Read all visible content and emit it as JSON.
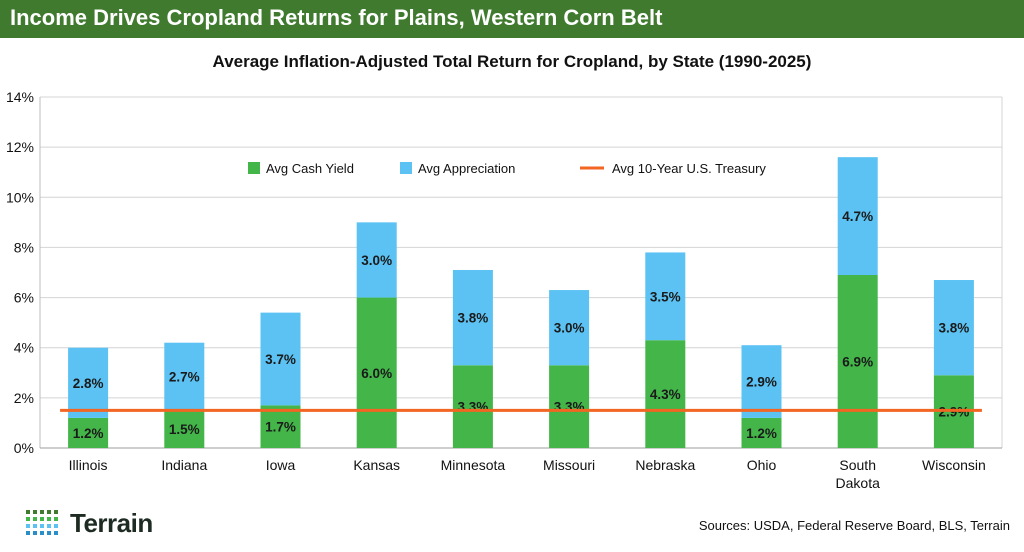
{
  "header": {
    "title": "Income Drives Cropland Returns for Plains, Western Corn Belt"
  },
  "footer": {
    "logo_text": "Terrain",
    "sources": "Sources: USDA, Federal Reserve Board, BLS, Terrain"
  },
  "colors": {
    "banner": "#3f7a2e",
    "cash_yield": "#43b549",
    "appreciation": "#5bc2f3",
    "treasury": "#f26522"
  },
  "chart_data": {
    "type": "bar",
    "stacked": true,
    "title": "Average Inflation-Adjusted Total Return for Cropland, by State (1990-2025)",
    "categories": [
      "Illinois",
      "Indiana",
      "Iowa",
      "Kansas",
      "Minnesota",
      "Missouri",
      "Nebraska",
      "Ohio",
      "South Dakota",
      "Wisconsin"
    ],
    "series": [
      {
        "name": "Avg Cash Yield",
        "values": [
          1.2,
          1.5,
          1.7,
          6.0,
          3.3,
          3.3,
          4.3,
          1.2,
          6.9,
          2.9
        ],
        "labels": [
          "1.2%",
          "1.5%",
          "1.7%",
          "6.0%",
          "3.3%",
          "3.3%",
          "4.3%",
          "1.2%",
          "6.9%",
          "2.9%"
        ]
      },
      {
        "name": "Avg Appreciation",
        "values": [
          2.8,
          2.7,
          3.7,
          3.0,
          3.8,
          3.0,
          3.5,
          2.9,
          4.7,
          3.8
        ],
        "labels": [
          "2.8%",
          "2.7%",
          "3.7%",
          "3.0%",
          "3.8%",
          "3.0%",
          "3.5%",
          "2.9%",
          "4.7%",
          "3.8%"
        ]
      }
    ],
    "reference_line": {
      "name": "Avg 10-Year U.S. Treasury",
      "value": 1.5
    },
    "yticks": [
      0,
      2,
      4,
      6,
      8,
      10,
      12,
      14
    ],
    "ytick_labels": [
      "0%",
      "2%",
      "4%",
      "6%",
      "8%",
      "10%",
      "12%",
      "14%"
    ],
    "ylim": [
      0,
      14
    ],
    "grid": true,
    "legend_position": "top-center"
  }
}
